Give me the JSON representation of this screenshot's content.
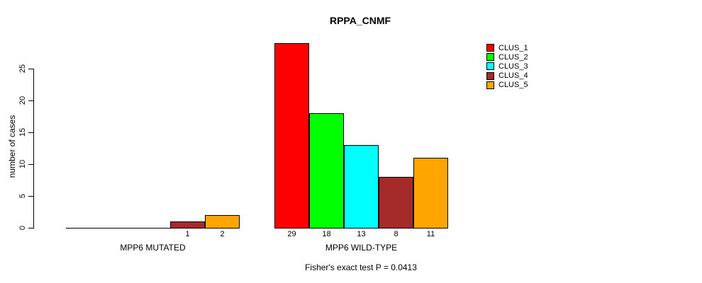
{
  "chart_data": {
    "type": "bar",
    "title": "RPPA_CNMF",
    "ylabel": "number of cases",
    "xlabel": "Fisher's exact test P = 0.0413",
    "groups": [
      "MPP6 MUTATED",
      "MPP6 WILD-TYPE"
    ],
    "series": [
      {
        "name": "CLUS_1",
        "color": "#FF0000",
        "values": [
          0,
          29
        ]
      },
      {
        "name": "CLUS_2",
        "color": "#00FF00",
        "values": [
          0,
          18
        ]
      },
      {
        "name": "CLUS_3",
        "color": "#00FFFF",
        "values": [
          0,
          13
        ]
      },
      {
        "name": "CLUS_4",
        "color": "#A52A2A",
        "values": [
          1,
          8
        ]
      },
      {
        "name": "CLUS_5",
        "color": "#FFA500",
        "values": [
          2,
          11
        ]
      }
    ],
    "yticks": [
      0,
      5,
      10,
      15,
      20,
      25
    ],
    "ylim": [
      0,
      25
    ],
    "bar_outline_color": "#000000",
    "show_value_labels_for_nonzero_only": true,
    "legend_position": "top-right",
    "grid": false
  }
}
